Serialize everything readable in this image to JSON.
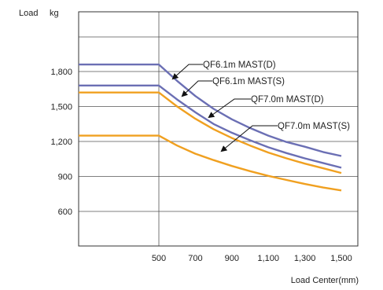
{
  "chart_data": {
    "type": "line",
    "title": "",
    "ylabel": "Load",
    "yunit": "kg",
    "xlabel": "Load Center(mm)",
    "xlim": [
      300,
      1500
    ],
    "ylim": [
      300,
      1950
    ],
    "grid": true,
    "x_ticks": [
      500,
      700,
      900,
      1100,
      1300,
      1500
    ],
    "x_tick_labels": [
      "500",
      "700",
      "900",
      "1,100",
      "1,300",
      "1,500"
    ],
    "y_ticks": [
      600,
      900,
      1200,
      1500,
      1800
    ],
    "y_tick_labels": [
      "600",
      "900",
      "1,200",
      "1,500",
      "1,800"
    ],
    "series": [
      {
        "name": "QF6.1m MAST(D)",
        "color": "#6b6fb4",
        "x": [
          300,
          500,
          600,
          700,
          800,
          900,
          1000,
          1100,
          1200,
          1300,
          1400,
          1500
        ],
        "y": [
          1860,
          1860,
          1720,
          1590,
          1480,
          1390,
          1315,
          1250,
          1195,
          1155,
          1110,
          1075
        ]
      },
      {
        "name": "QF6.1m MAST(S)",
        "color": "#6b6fb4",
        "x": [
          300,
          500,
          600,
          700,
          800,
          900,
          1000,
          1100,
          1200,
          1300,
          1400,
          1500
        ],
        "y": [
          1680,
          1680,
          1560,
          1450,
          1350,
          1275,
          1210,
          1150,
          1100,
          1055,
          1015,
          975
        ]
      },
      {
        "name": "QF7.0m MAST(D)",
        "color": "#f0a020",
        "x": [
          300,
          500,
          600,
          700,
          800,
          900,
          1000,
          1100,
          1200,
          1300,
          1400,
          1500
        ],
        "y": [
          1620,
          1620,
          1500,
          1395,
          1305,
          1230,
          1165,
          1105,
          1055,
          1010,
          970,
          930
        ]
      },
      {
        "name": "QF7.0m MAST(S)",
        "color": "#f0a020",
        "x": [
          300,
          500,
          600,
          700,
          800,
          900,
          1000,
          1100,
          1200,
          1300,
          1400,
          1500
        ],
        "y": [
          1250,
          1250,
          1165,
          1095,
          1040,
          990,
          945,
          905,
          870,
          835,
          805,
          780
        ]
      }
    ],
    "annotations": [
      "QF6.1m MAST(D)",
      "QF6.1m MAST(S)",
      "QF7.0m MAST(D)",
      "QF7.0m MAST(S)"
    ]
  }
}
